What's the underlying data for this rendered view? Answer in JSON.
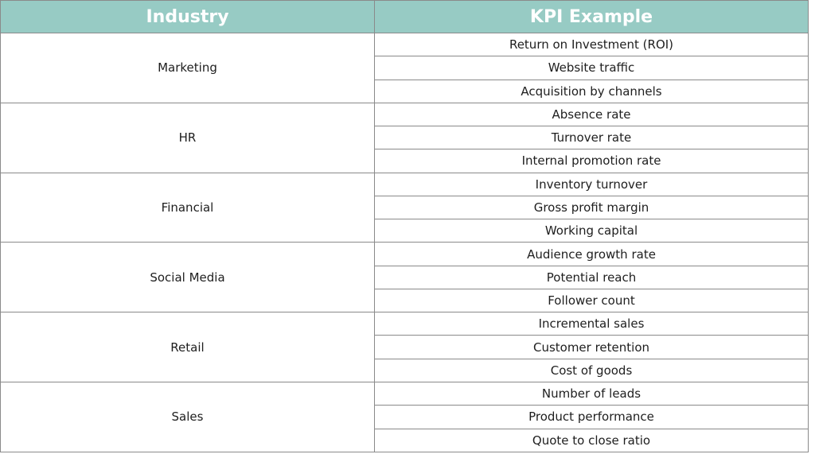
{
  "table": {
    "headers": [
      "Industry",
      "KPI Example"
    ],
    "groups": [
      {
        "industry": "Marketing",
        "kpis": [
          "Return on Investment (ROI)",
          "Website traffic",
          "Acquisition by channels"
        ]
      },
      {
        "industry": "HR",
        "kpis": [
          "Absence rate",
          "Turnover rate",
          "Internal promotion rate"
        ]
      },
      {
        "industry": "Financial",
        "kpis": [
          "Inventory turnover",
          "Gross profit margin",
          "Working capital"
        ]
      },
      {
        "industry": "Social Media",
        "kpis": [
          "Audience growth rate",
          "Potential reach",
          "Follower count"
        ]
      },
      {
        "industry": "Retail",
        "kpis": [
          "Incremental sales",
          "Customer retention",
          "Cost of goods"
        ]
      },
      {
        "industry": "Sales",
        "kpis": [
          "Number of leads",
          "Product performance",
          "Quote to close ratio"
        ]
      }
    ]
  }
}
